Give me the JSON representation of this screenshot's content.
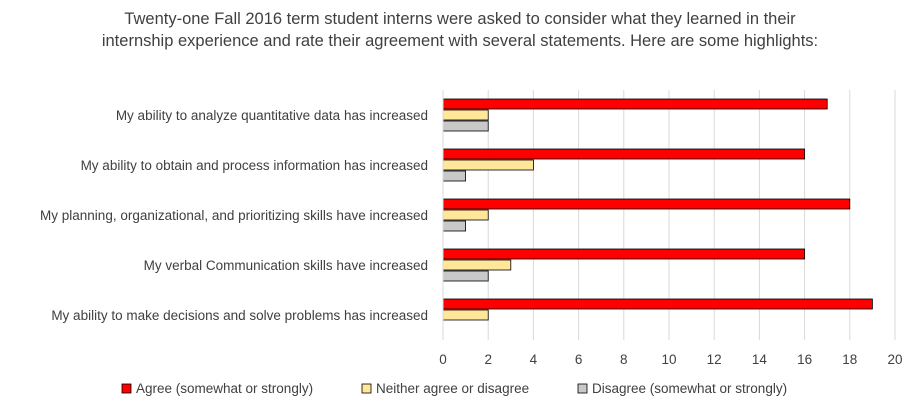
{
  "chart_data": {
    "type": "bar",
    "orientation": "horizontal",
    "title": "Twenty-one Fall 2016 term student interns were asked to consider what they learned in their internship experience and rate their agreement with several statements. Here are some highlights:",
    "categories": [
      "My ability to analyze quantitative data has increased",
      "My ability to obtain and process information has increased",
      "My planning, organizational, and prioritizing skills have increased",
      "My verbal Communication skills have increased",
      "My ability to make decisions and solve problems has increased"
    ],
    "series": [
      {
        "name": "Agree (somewhat or strongly)",
        "color": "#ff0000",
        "values": [
          17,
          16,
          18,
          16,
          19
        ]
      },
      {
        "name": "Neither agree or disagree",
        "color": "#ffe699",
        "values": [
          2,
          4,
          2,
          3,
          2
        ]
      },
      {
        "name": "Disagree (somewhat or strongly)",
        "color": "#c9c9c9",
        "values": [
          2,
          1,
          1,
          2,
          0
        ]
      }
    ],
    "xlim": [
      0,
      20
    ],
    "xticks": [
      0,
      2,
      4,
      6,
      8,
      10,
      12,
      14,
      16,
      18,
      20
    ],
    "grid": true,
    "legend": "bottom"
  }
}
